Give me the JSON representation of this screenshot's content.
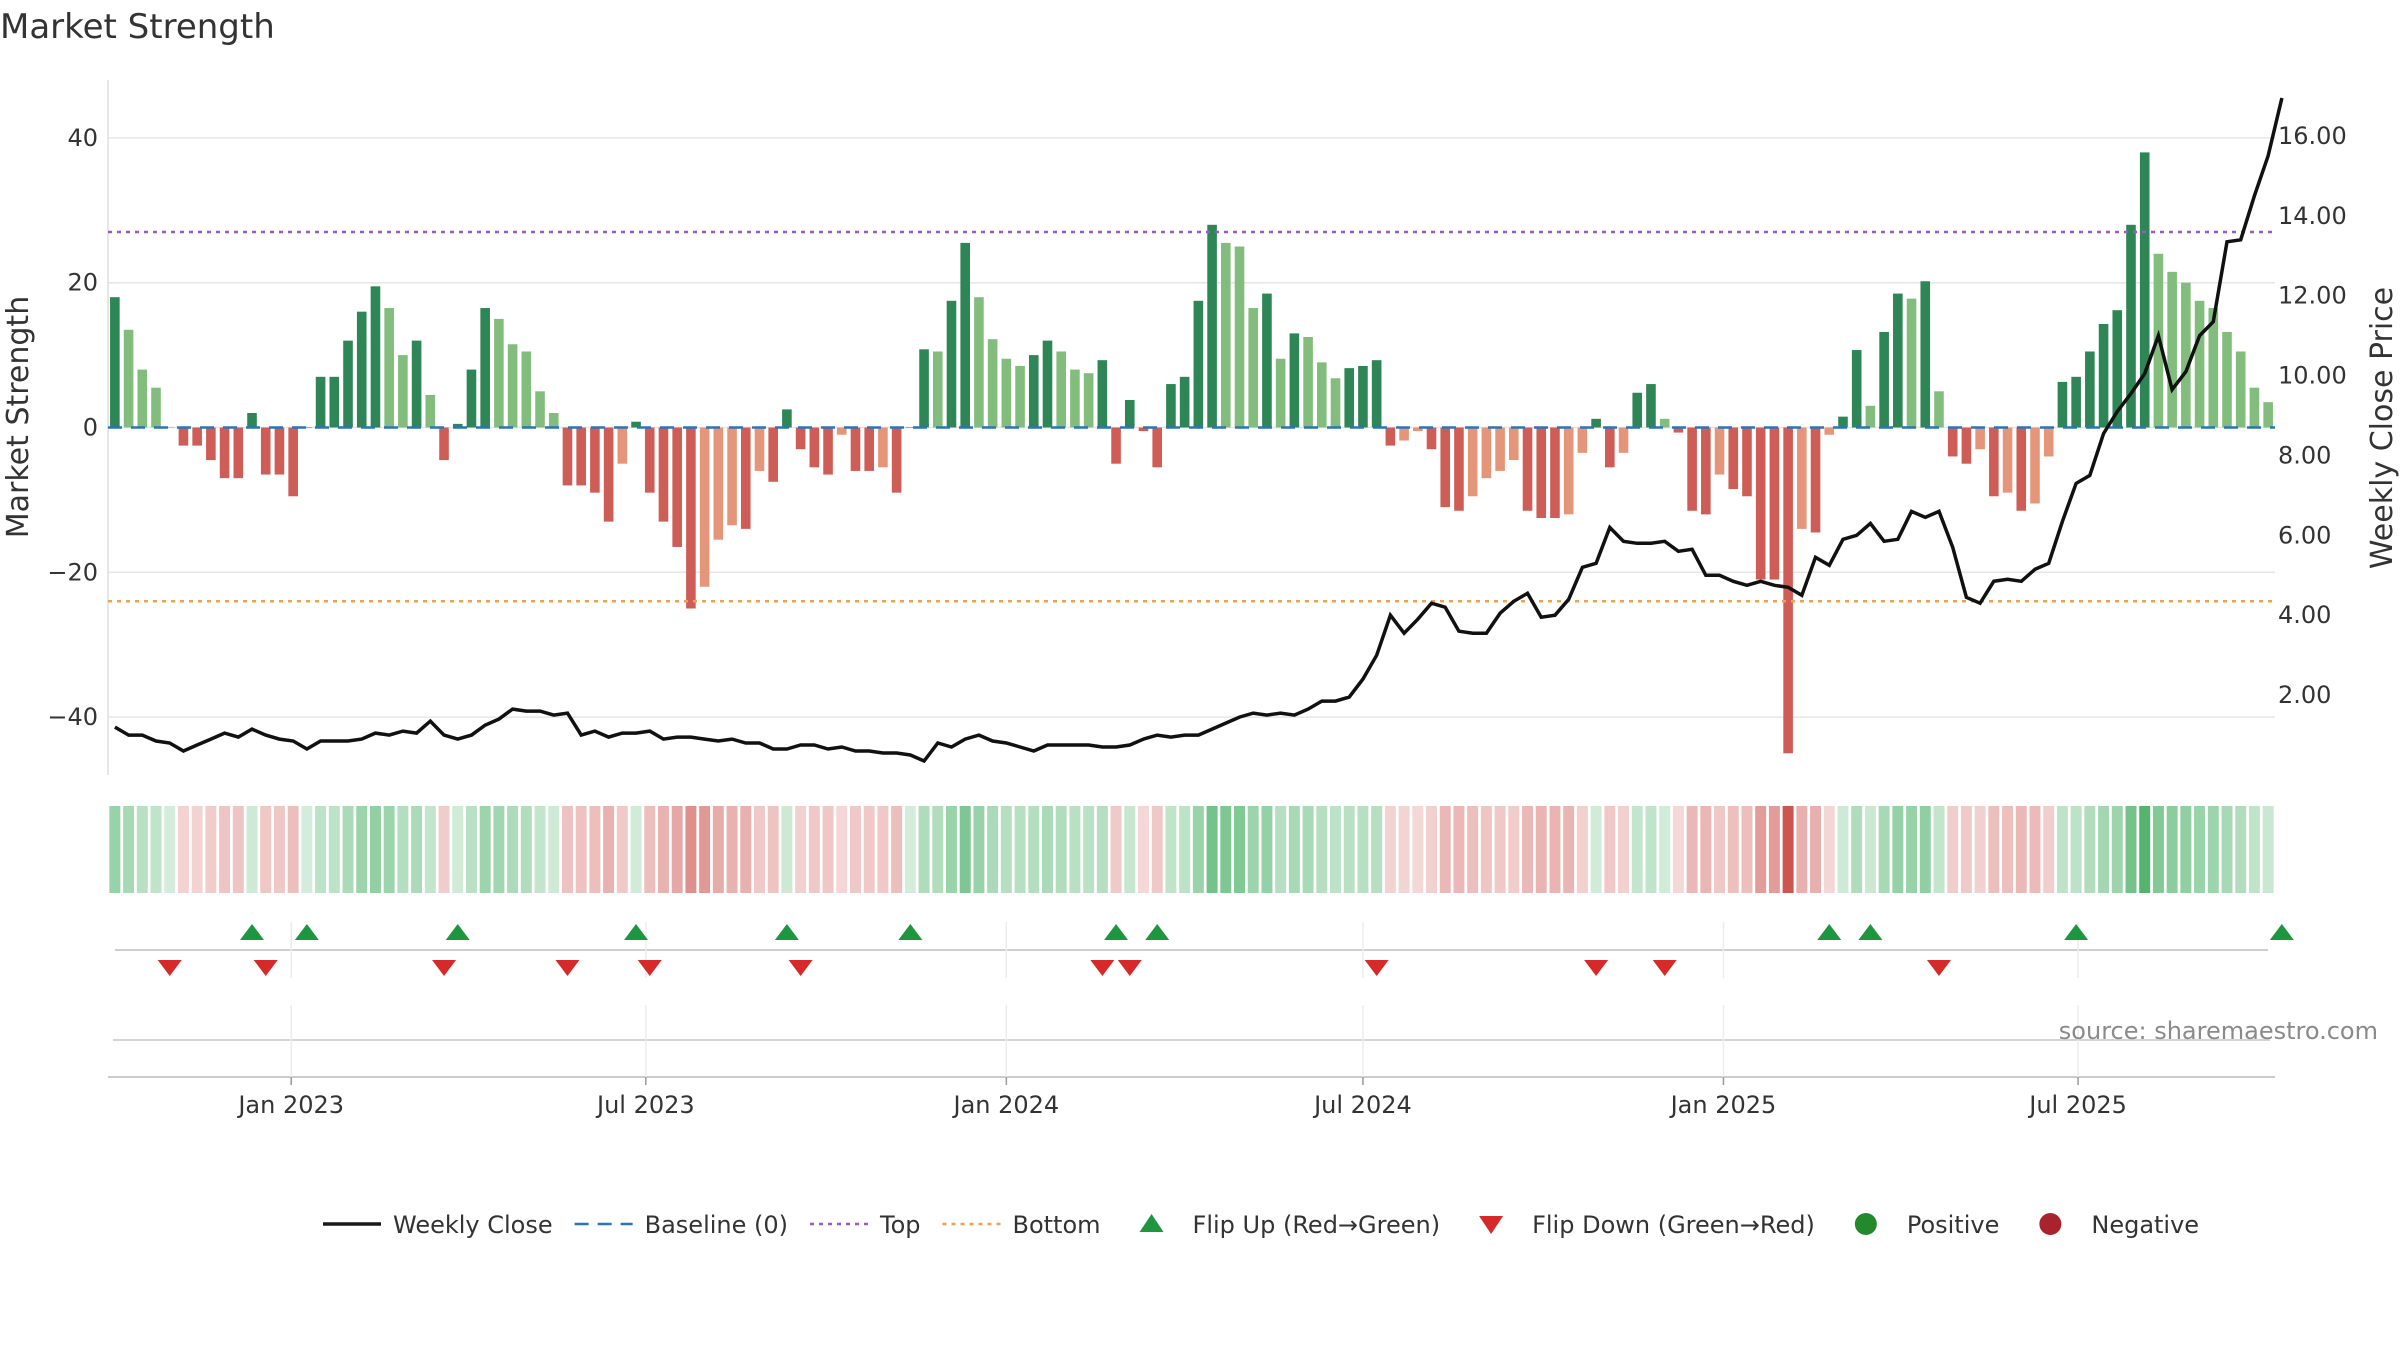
{
  "chart_data": {
    "type": "bar",
    "title": "Market Strength",
    "ylabel": "Market Strength",
    "y2label": "Weekly Close Price",
    "source": "source: sharemaestro.com",
    "ylim": [
      -48,
      48
    ],
    "y2lim": [
      0.0,
      17.4
    ],
    "yticks": [
      40,
      20,
      0,
      -20,
      -40
    ],
    "ytick_labels": [
      "40",
      "20",
      "0",
      "−20",
      "−40"
    ],
    "y2ticks": [
      16,
      14,
      12,
      10,
      8,
      6,
      4,
      2
    ],
    "y2tick_labels": [
      "16.00",
      "14.00",
      "12.00",
      "10.00",
      "8.00",
      "6.00",
      "4.00",
      "2.00"
    ],
    "top_level": 27,
    "bottom_level": -24,
    "xaxis": {
      "start": "2022-10-03",
      "ticks": [
        {
          "date": "2023-01-01",
          "label": "Jan 2023"
        },
        {
          "date": "2023-07-01",
          "label": "Jul 2023"
        },
        {
          "date": "2024-01-01",
          "label": "Jan 2024"
        },
        {
          "date": "2024-07-01",
          "label": "Jul 2024"
        },
        {
          "date": "2025-01-01",
          "label": "Jan 2025"
        },
        {
          "date": "2025-07-01",
          "label": "Jul 2025"
        }
      ]
    },
    "strength": [
      18,
      13.5,
      8,
      5.5,
      0,
      -2.5,
      -2.5,
      -4.5,
      -7,
      -7,
      2,
      -6.5,
      -6.5,
      -9.5,
      0,
      7,
      7,
      12,
      16,
      19.5,
      16.5,
      10,
      12,
      4.5,
      -4.5,
      0.5,
      8,
      16.5,
      15,
      11.5,
      10.5,
      5,
      2,
      -8,
      -8,
      -9,
      -13,
      -5,
      0.8,
      -9,
      -13,
      -16.5,
      -25,
      -22,
      -15.5,
      -13.5,
      -14,
      -6,
      -7.5,
      2.5,
      -3,
      -5.5,
      -6.5,
      -1,
      -6,
      -6,
      -5.5,
      -9,
      0,
      10.8,
      10.5,
      17.5,
      25.5,
      18,
      12.2,
      9.5,
      8.5,
      10,
      12,
      10.5,
      8,
      7.5,
      9.3,
      -5,
      3.8,
      -0.5,
      -5.5,
      6,
      7,
      17.5,
      28,
      25.5,
      25,
      16.5,
      18.5,
      9.5,
      13,
      12.5,
      9,
      6.8,
      8.2,
      8.5,
      9.3,
      -2.5,
      -1.8,
      -0.5,
      -3,
      -11,
      -11.5,
      -9.5,
      -7,
      -6,
      -4.5,
      -11.5,
      -12.5,
      -12.5,
      -12,
      -3.5,
      1.2,
      -5.5,
      -3.5,
      4.8,
      6,
      1.2,
      -0.7,
      -11.5,
      -12,
      -6.5,
      -8.5,
      -9.5,
      -21,
      -21,
      -45,
      -14,
      -14.5,
      -1,
      1.5,
      10.7,
      3,
      13.2,
      18.5,
      17.8,
      20.2,
      5,
      -4,
      -5,
      -3,
      -9.5,
      -9,
      -11.5,
      -10.5,
      -4,
      6.3,
      7,
      10.5,
      14.3,
      16.2,
      28,
      38,
      24,
      21.5,
      20,
      17.5,
      16.5,
      13.2,
      10.5,
      5.5,
      3.5
    ],
    "close": [
      1.2,
      1.0,
      1.0,
      0.85,
      0.8,
      0.6,
      0.75,
      0.9,
      1.05,
      0.95,
      1.15,
      1.0,
      0.9,
      0.85,
      0.65,
      0.85,
      0.85,
      0.85,
      0.9,
      1.05,
      1.0,
      1.1,
      1.05,
      1.35,
      1.0,
      0.9,
      1.0,
      1.25,
      1.4,
      1.65,
      1.6,
      1.6,
      1.5,
      1.55,
      1.0,
      1.1,
      0.95,
      1.05,
      1.05,
      1.1,
      0.9,
      0.95,
      0.95,
      0.9,
      0.85,
      0.9,
      0.8,
      0.8,
      0.65,
      0.65,
      0.75,
      0.75,
      0.65,
      0.7,
      0.6,
      0.6,
      0.55,
      0.55,
      0.5,
      0.35,
      0.8,
      0.7,
      0.9,
      1.0,
      0.85,
      0.8,
      0.7,
      0.6,
      0.75,
      0.75,
      0.75,
      0.75,
      0.7,
      0.7,
      0.75,
      0.9,
      1.0,
      0.95,
      1.0,
      1.0,
      1.15,
      1.3,
      1.45,
      1.55,
      1.5,
      1.55,
      1.5,
      1.65,
      1.85,
      1.85,
      1.95,
      2.4,
      3.0,
      4.0,
      3.55,
      3.9,
      4.3,
      4.2,
      3.6,
      3.55,
      3.55,
      4.05,
      4.35,
      4.55,
      3.95,
      4.0,
      4.4,
      5.2,
      5.3,
      6.2,
      5.85,
      5.8,
      5.8,
      5.85,
      5.6,
      5.65,
      5.0,
      5.0,
      4.85,
      4.75,
      4.85,
      4.75,
      4.7,
      4.5,
      5.45,
      5.25,
      5.9,
      6.0,
      6.3,
      5.85,
      5.9,
      6.6,
      6.45,
      6.6,
      5.7,
      4.45,
      4.3,
      4.85,
      4.9,
      4.85,
      5.15,
      5.3,
      6.35,
      7.3,
      7.5,
      8.55,
      9.1,
      9.55,
      10.05,
      11.0,
      9.65,
      10.1,
      11.0,
      11.35,
      13.35,
      13.4,
      14.5,
      15.5,
      16.95
    ],
    "flip_up": [
      10,
      14,
      25,
      38,
      49,
      58,
      73,
      76,
      125,
      128,
      143,
      158
    ],
    "flip_down": [
      4,
      11,
      24,
      33,
      39,
      50,
      72,
      74,
      92,
      108,
      113,
      133
    ],
    "legend": [
      {
        "label": "Weekly Close",
        "icon": "solid-line",
        "color": "#1a1a1a"
      },
      {
        "label": "Baseline (0)",
        "icon": "dash-line",
        "color": "#2b75b5"
      },
      {
        "label": "Top",
        "icon": "dot-line",
        "color": "#9b59c7"
      },
      {
        "label": "Bottom",
        "icon": "dot-line",
        "color": "#f0a050"
      },
      {
        "label": "Flip Up (Red→Green)",
        "icon": "triangle-up",
        "color": "#1e9640"
      },
      {
        "label": "Flip Down (Green→Red)",
        "icon": "triangle-down",
        "color": "#d62a2a"
      },
      {
        "label": "Positive",
        "icon": "circle",
        "color": "#238a2c"
      },
      {
        "label": "Negative",
        "icon": "circle",
        "color": "#a8232b"
      }
    ]
  },
  "colors": {
    "pos_dark": "#2e8555",
    "pos_light": "#83bd7d",
    "neg_dark": "#ce5d58",
    "neg_light": "#e5967a",
    "price_line": "#111111",
    "baseline": "#2b75b5",
    "top": "#9b59c7",
    "bottom": "#f0a050",
    "flip_up": "#1e9640",
    "flip_down": "#d62a2a",
    "grid": "#e6e6e6"
  }
}
